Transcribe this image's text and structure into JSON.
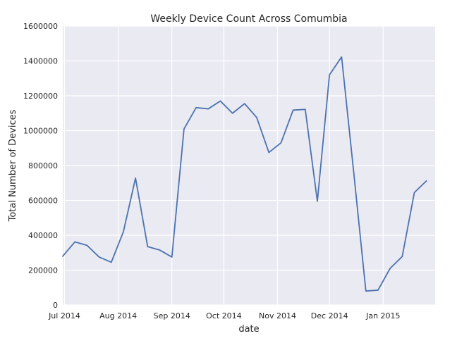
{
  "chart_data": {
    "type": "line",
    "title": "Weekly Device Count Across Comumbia",
    "xlabel": "date",
    "ylabel": "Total Number of Devices",
    "ylim": [
      0,
      1600000
    ],
    "xlim": [
      "2014-06-30",
      "2015-01-31"
    ],
    "y_ticks": [
      0,
      200000,
      400000,
      600000,
      800000,
      1000000,
      1200000,
      1400000,
      1600000
    ],
    "y_tick_labels": [
      "0",
      "200000",
      "400000",
      "600000",
      "800000",
      "1000000",
      "1200000",
      "1400000",
      "1600000"
    ],
    "x_ticks": [
      "2014-07-01",
      "2014-08-01",
      "2014-09-01",
      "2014-10-01",
      "2014-11-01",
      "2014-12-01",
      "2015-01-01"
    ],
    "x_tick_labels": [
      "Jul 2014",
      "Aug 2014",
      "Sep 2014",
      "Oct 2014",
      "Nov 2014",
      "Dec 2014",
      "Jan 2015"
    ],
    "grid": true,
    "series": [
      {
        "color": "#4c72b0",
        "points": [
          {
            "x": "2014-06-30",
            "y": 280000
          },
          {
            "x": "2014-07-07",
            "y": 362000
          },
          {
            "x": "2014-07-14",
            "y": 342000
          },
          {
            "x": "2014-07-21",
            "y": 275000
          },
          {
            "x": "2014-07-28",
            "y": 245000
          },
          {
            "x": "2014-08-04",
            "y": 420000
          },
          {
            "x": "2014-08-11",
            "y": 728000
          },
          {
            "x": "2014-08-18",
            "y": 335000
          },
          {
            "x": "2014-08-25",
            "y": 315000
          },
          {
            "x": "2014-09-01",
            "y": 275000
          },
          {
            "x": "2014-09-08",
            "y": 1010000
          },
          {
            "x": "2014-09-15",
            "y": 1132000
          },
          {
            "x": "2014-09-22",
            "y": 1125000
          },
          {
            "x": "2014-09-29",
            "y": 1170000
          },
          {
            "x": "2014-10-06",
            "y": 1100000
          },
          {
            "x": "2014-10-13",
            "y": 1155000
          },
          {
            "x": "2014-10-20",
            "y": 1075000
          },
          {
            "x": "2014-10-27",
            "y": 875000
          },
          {
            "x": "2014-11-03",
            "y": 930000
          },
          {
            "x": "2014-11-10",
            "y": 1118000
          },
          {
            "x": "2014-11-17",
            "y": 1122000
          },
          {
            "x": "2014-11-24",
            "y": 595000
          },
          {
            "x": "2014-12-01",
            "y": 1320000
          },
          {
            "x": "2014-12-08",
            "y": 1423000
          },
          {
            "x": "2014-12-15",
            "y": 760000
          },
          {
            "x": "2014-12-22",
            "y": 80000
          },
          {
            "x": "2014-12-29",
            "y": 85000
          },
          {
            "x": "2015-01-05",
            "y": 210000
          },
          {
            "x": "2015-01-12",
            "y": 278000
          },
          {
            "x": "2015-01-19",
            "y": 645000
          },
          {
            "x": "2015-01-26",
            "y": 712000
          }
        ]
      }
    ]
  }
}
